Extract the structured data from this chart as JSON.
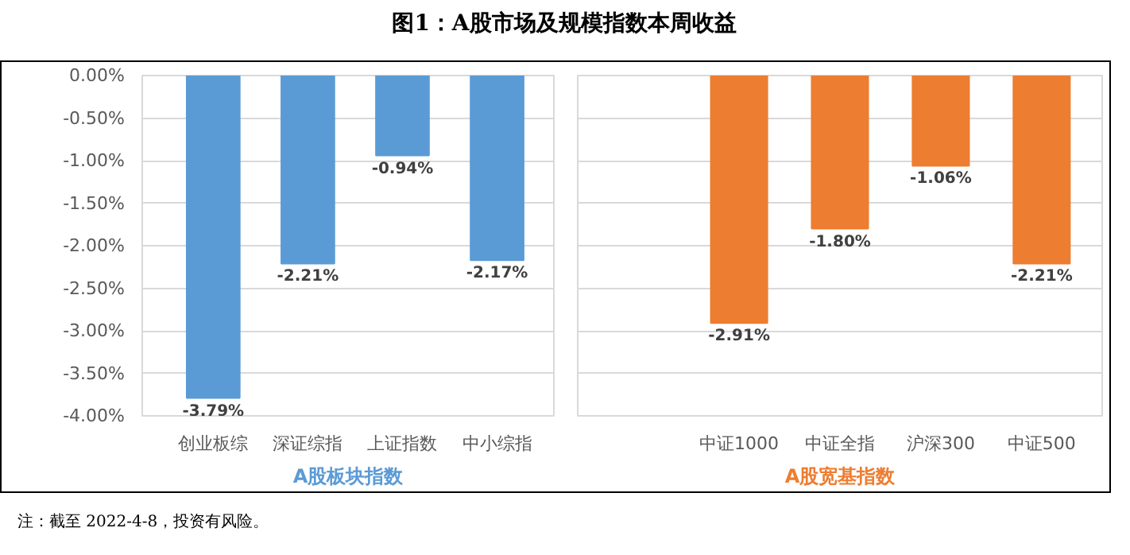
{
  "chart_data": [
    {
      "type": "bar",
      "title": "图1：A股市场及规模指数本周收益",
      "categories": [
        "创业板综",
        "深证综指",
        "上证指数",
        "中小综指"
      ],
      "values": [
        -3.79,
        -2.21,
        -0.94,
        -2.17
      ],
      "color": "#5b9bd5",
      "value_labels": [
        "-3.79%",
        "-2.21%",
        "-0.94%",
        "-2.17%"
      ],
      "xlabel": "A股板块指数",
      "ylim": [
        -4,
        0
      ],
      "yticks": [
        {
          "value": 0,
          "label": "0.00%"
        },
        {
          "value": -0.5,
          "label": "-0.50%"
        },
        {
          "value": -1,
          "label": "-1.00%"
        },
        {
          "value": -1.5,
          "label": "-1.50%"
        },
        {
          "value": -2,
          "label": "-2.00%"
        },
        {
          "value": -2.5,
          "label": "-2.50%"
        },
        {
          "value": -3,
          "label": "-3.00%"
        },
        {
          "value": -3.5,
          "label": "-3.50%"
        },
        {
          "value": -4,
          "label": "-4.00%"
        }
      ],
      "grid": "y",
      "annotations": [
        "注：截至 2022-4-8，投资有风险。"
      ]
    },
    {
      "type": "bar",
      "categories": [
        "中证1000",
        "中证全指",
        "沪深300",
        "中证500"
      ],
      "values": [
        -2.91,
        -1.8,
        -1.06,
        -2.21
      ],
      "color": "#ed7d31",
      "value_labels": [
        "-2.91%",
        "-1.80%",
        "-1.06%",
        "-2.21%"
      ],
      "xlabel": "A股宽基指数",
      "ylim": [
        -4,
        0
      ],
      "yticks": [
        {
          "value": 0,
          "label": null
        },
        {
          "value": -0.5,
          "label": null
        },
        {
          "value": -1,
          "label": null
        },
        {
          "value": -1.5,
          "label": null
        },
        {
          "value": -2,
          "label": null
        },
        {
          "value": -2.5,
          "label": null
        },
        {
          "value": -3,
          "label": null
        },
        {
          "value": -3.5,
          "label": null
        },
        {
          "value": -4,
          "label": null
        }
      ],
      "grid": "y",
      "tick_labels": "x"
    }
  ]
}
